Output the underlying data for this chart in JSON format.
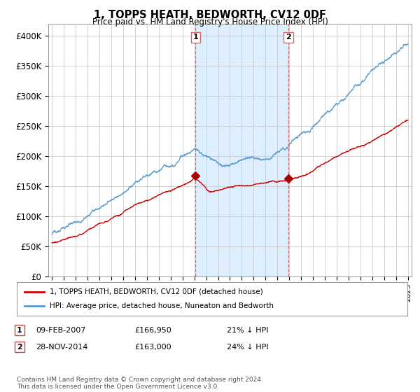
{
  "title": "1, TOPPS HEATH, BEDWORTH, CV12 0DF",
  "subtitle": "Price paid vs. HM Land Registry's House Price Index (HPI)",
  "background_color": "#ffffff",
  "plot_background": "#ffffff",
  "grid_color": "#cccccc",
  "yticks": [
    0,
    50000,
    100000,
    150000,
    200000,
    250000,
    300000,
    350000,
    400000
  ],
  "ytick_labels": [
    "£0",
    "£50K",
    "£100K",
    "£150K",
    "£200K",
    "£250K",
    "£300K",
    "£350K",
    "£400K"
  ],
  "xlim_start": 1994.7,
  "xlim_end": 2025.3,
  "ylim_min": 0,
  "ylim_max": 420000,
  "legend_line1": "1, TOPPS HEATH, BEDWORTH, CV12 0DF (detached house)",
  "legend_line2": "HPI: Average price, detached house, Nuneaton and Bedworth",
  "line1_color": "#cc0000",
  "line2_color": "#5599cc",
  "shade_color": "#ddeeff",
  "vline1_x": 2007.1,
  "vline2_x": 2014.92,
  "vline_color": "#dd6666",
  "marker1_y": 166950,
  "marker2_y": 163000,
  "marker_color": "#aa0000",
  "footer": "Contains HM Land Registry data © Crown copyright and database right 2024.\nThis data is licensed under the Open Government Licence v3.0."
}
